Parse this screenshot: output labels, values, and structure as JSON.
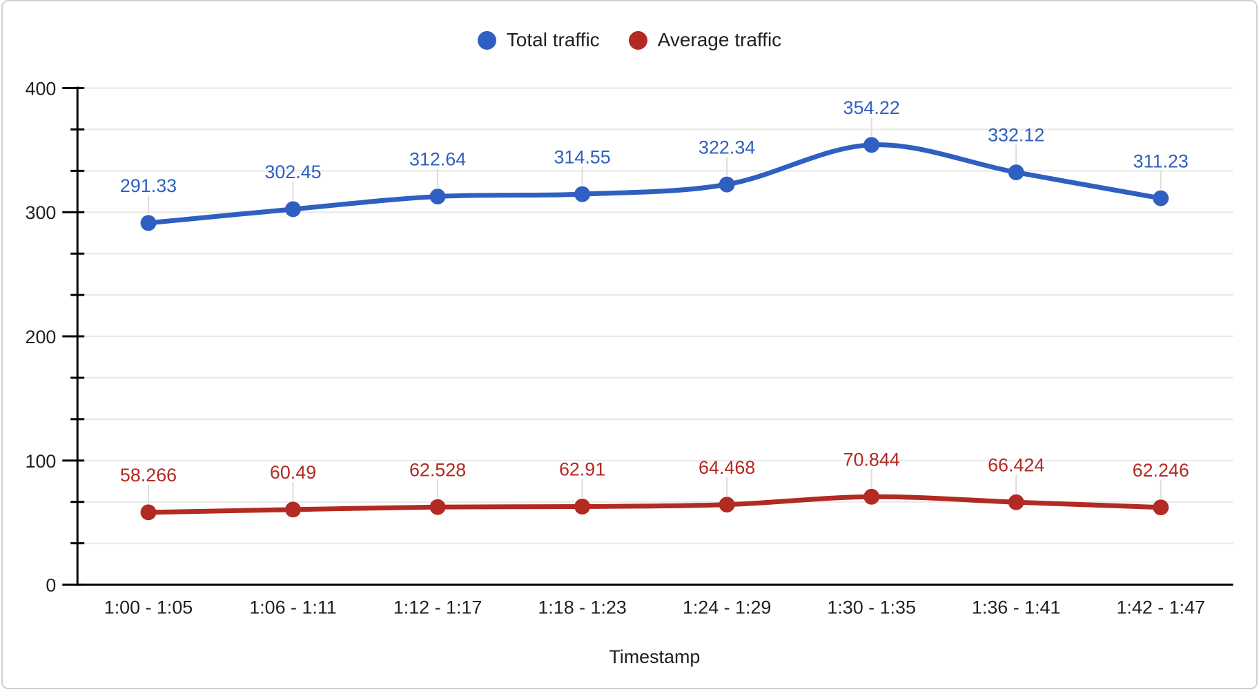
{
  "chart_data": {
    "type": "line",
    "x": [
      "1:00 - 1:05",
      "1:06 - 1:11",
      "1:12 - 1:17",
      "1:18 - 1:23",
      "1:24 - 1:29",
      "1:30 - 1:35",
      "1:36 - 1:41",
      "1:42 - 1:47"
    ],
    "series": [
      {
        "name": "Total traffic",
        "color": "#2f5fc0",
        "values": [
          291.33,
          302.45,
          312.64,
          314.55,
          322.34,
          354.22,
          332.12,
          311.23
        ],
        "labels": [
          "291.33",
          "302.45",
          "312.64",
          "314.55",
          "322.34",
          "354.22",
          "332.12",
          "311.23"
        ]
      },
      {
        "name": "Average traffic",
        "color": "#b22a22",
        "values": [
          58.266,
          60.49,
          62.528,
          62.91,
          64.468,
          70.844,
          66.424,
          62.246
        ],
        "labels": [
          "58.266",
          "60.49",
          "62.528",
          "62.91",
          "64.468",
          "70.844",
          "66.424",
          "62.246"
        ]
      }
    ],
    "title": "",
    "xlabel": "Timestamp",
    "ylabel": "",
    "ylim": [
      0,
      400
    ],
    "yticks": [
      0,
      100,
      200,
      300,
      400
    ],
    "minor_divisions_per_major": 3,
    "grid": true,
    "legend_position": "top",
    "smooth": true
  },
  "colors": {
    "gridline": "#e7e7e7",
    "axis": "#000000",
    "tick_text": "#1f1f1f",
    "label_stem": "#dcdcdc",
    "border": "#cfcfcf",
    "background": "#ffffff"
  }
}
